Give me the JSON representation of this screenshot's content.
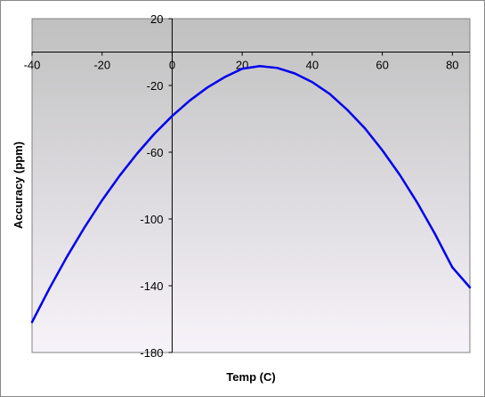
{
  "chart_data": {
    "type": "line",
    "title": "",
    "xlabel": "Temp (C)",
    "ylabel": "Accuracy (ppm)",
    "xlim": [
      -40,
      85
    ],
    "ylim": [
      -180,
      20
    ],
    "x_ticks": [
      -40,
      -20,
      0,
      20,
      40,
      60,
      80
    ],
    "y_ticks": [
      20,
      -20,
      -60,
      -100,
      -140,
      -180
    ],
    "x_tick_labels": [
      "-40",
      "-20",
      "0",
      "20",
      "40",
      "60",
      "80"
    ],
    "y_tick_labels": [
      "20",
      "-20",
      "-60",
      "-100",
      "-140",
      "-180"
    ],
    "grid": false,
    "legend": "none",
    "series": [
      {
        "color": "#0000ee",
        "x": [
          -40,
          -35,
          -30,
          -25,
          -20,
          -15,
          -10,
          -5,
          0,
          5,
          10,
          15,
          20,
          25,
          30,
          35,
          40,
          45,
          50,
          55,
          60,
          65,
          70,
          75,
          80,
          85
        ],
        "y": [
          -161.8,
          -141.5,
          -122.5,
          -105,
          -88.8,
          -74.1,
          -60.8,
          -48.8,
          -38.3,
          -29.1,
          -21.3,
          -15.0,
          -10.0,
          -8.4,
          -9.5,
          -12.8,
          -18.0,
          -25.1,
          -34.6,
          -45.6,
          -58.8,
          -73.6,
          -90.3,
          -108.8,
          -129.0,
          -141.0
        ]
      }
    ],
    "colors": {
      "plot_top": "#c0c0c0",
      "plot_bottom": "#f7f3fa",
      "frame": "#888888"
    }
  }
}
